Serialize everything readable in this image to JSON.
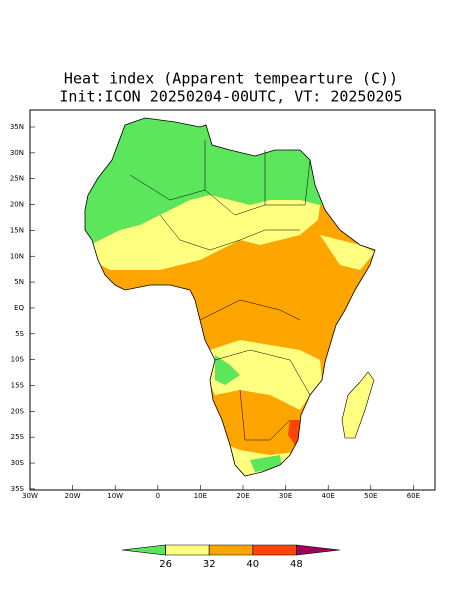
{
  "title": {
    "line1": "Heat index (Apparent tempearture (C))",
    "line2": "Init:ICON 20250204-00UTC, VT: 20250205"
  },
  "lat_labels": [
    "35N",
    "30N",
    "25N",
    "20N",
    "15N",
    "10N",
    "5N",
    "EQ",
    "5S",
    "10S",
    "15S",
    "20S",
    "25S",
    "30S",
    "35S"
  ],
  "lon_labels": [
    "30W",
    "20W",
    "10W",
    "0",
    "10E",
    "20E",
    "30E",
    "40E",
    "50E",
    "60E"
  ],
  "colorbar": {
    "levels": [
      26,
      32,
      40,
      48
    ],
    "colors": [
      "#5ce65c",
      "#ffff80",
      "#ffa500",
      "#ff4500",
      "#a0005a"
    ]
  }
}
